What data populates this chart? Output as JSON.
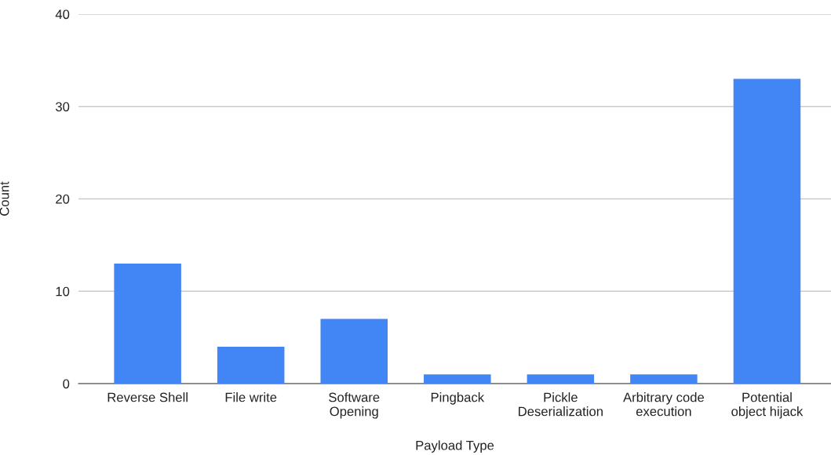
{
  "chart_data": {
    "type": "bar",
    "xlabel": "Payload Type",
    "ylabel": "Count",
    "categories": [
      "Reverse Shell",
      "File write",
      "Software\nOpening",
      "Pingback",
      "Pickle\nDeserialization",
      "Arbitrary code\nexecution",
      "Potential\nobject hijack"
    ],
    "values": [
      13,
      4,
      7,
      1,
      1,
      1,
      33
    ],
    "color": "#4285f4",
    "ylim": [
      0,
      40
    ],
    "yticks": [
      0,
      10,
      20,
      30,
      40
    ],
    "grid": "y",
    "legend": false
  }
}
